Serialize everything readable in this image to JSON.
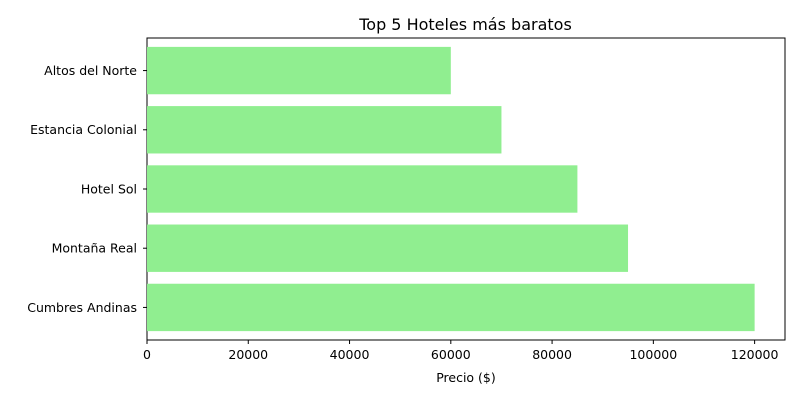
{
  "chart_data": {
    "type": "bar",
    "orientation": "horizontal",
    "title": "Top 5 Hoteles más baratos",
    "xlabel": "Precio ($)",
    "ylabel": "",
    "categories": [
      "Altos del Norte",
      "Estancia Colonial",
      "Hotel Sol",
      "Montaña Real",
      "Cumbres Andinas"
    ],
    "values": [
      60000,
      70000,
      85000,
      95000,
      120000
    ],
    "xlim": [
      0,
      126000
    ],
    "xticks": [
      0,
      20000,
      40000,
      60000,
      80000,
      100000,
      120000
    ],
    "xtick_labels": [
      "0",
      "20000",
      "40000",
      "60000",
      "80000",
      "100000",
      "120000"
    ],
    "bar_color": "#90ee90",
    "grid": false,
    "legend": "none"
  }
}
